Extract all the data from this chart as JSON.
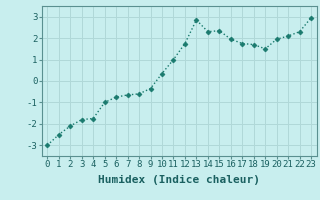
{
  "x": [
    0,
    1,
    2,
    3,
    4,
    5,
    6,
    7,
    8,
    9,
    10,
    11,
    12,
    13,
    14,
    15,
    16,
    17,
    18,
    19,
    20,
    21,
    22,
    23
  ],
  "y": [
    -3.0,
    -2.5,
    -2.1,
    -1.8,
    -1.75,
    -1.0,
    -0.75,
    -0.65,
    -0.6,
    -0.35,
    0.35,
    1.0,
    1.75,
    2.85,
    2.3,
    2.35,
    1.95,
    1.75,
    1.7,
    1.5,
    1.95,
    2.1,
    2.3,
    2.95
  ],
  "line_color": "#1a7a6e",
  "marker": "D",
  "marker_size": 2.5,
  "bg_color": "#c8eeee",
  "grid_color": "#b0d8d8",
  "xlabel": "Humidex (Indice chaleur)",
  "xlabel_fontsize": 8,
  "ylim": [
    -3.5,
    3.5
  ],
  "xlim": [
    -0.5,
    23.5
  ],
  "yticks": [
    -3,
    -2,
    -1,
    0,
    1,
    2,
    3
  ],
  "xticks": [
    0,
    1,
    2,
    3,
    4,
    5,
    6,
    7,
    8,
    9,
    10,
    11,
    12,
    13,
    14,
    15,
    16,
    17,
    18,
    19,
    20,
    21,
    22,
    23
  ],
  "tick_fontsize": 6.5,
  "linewidth": 1.0
}
